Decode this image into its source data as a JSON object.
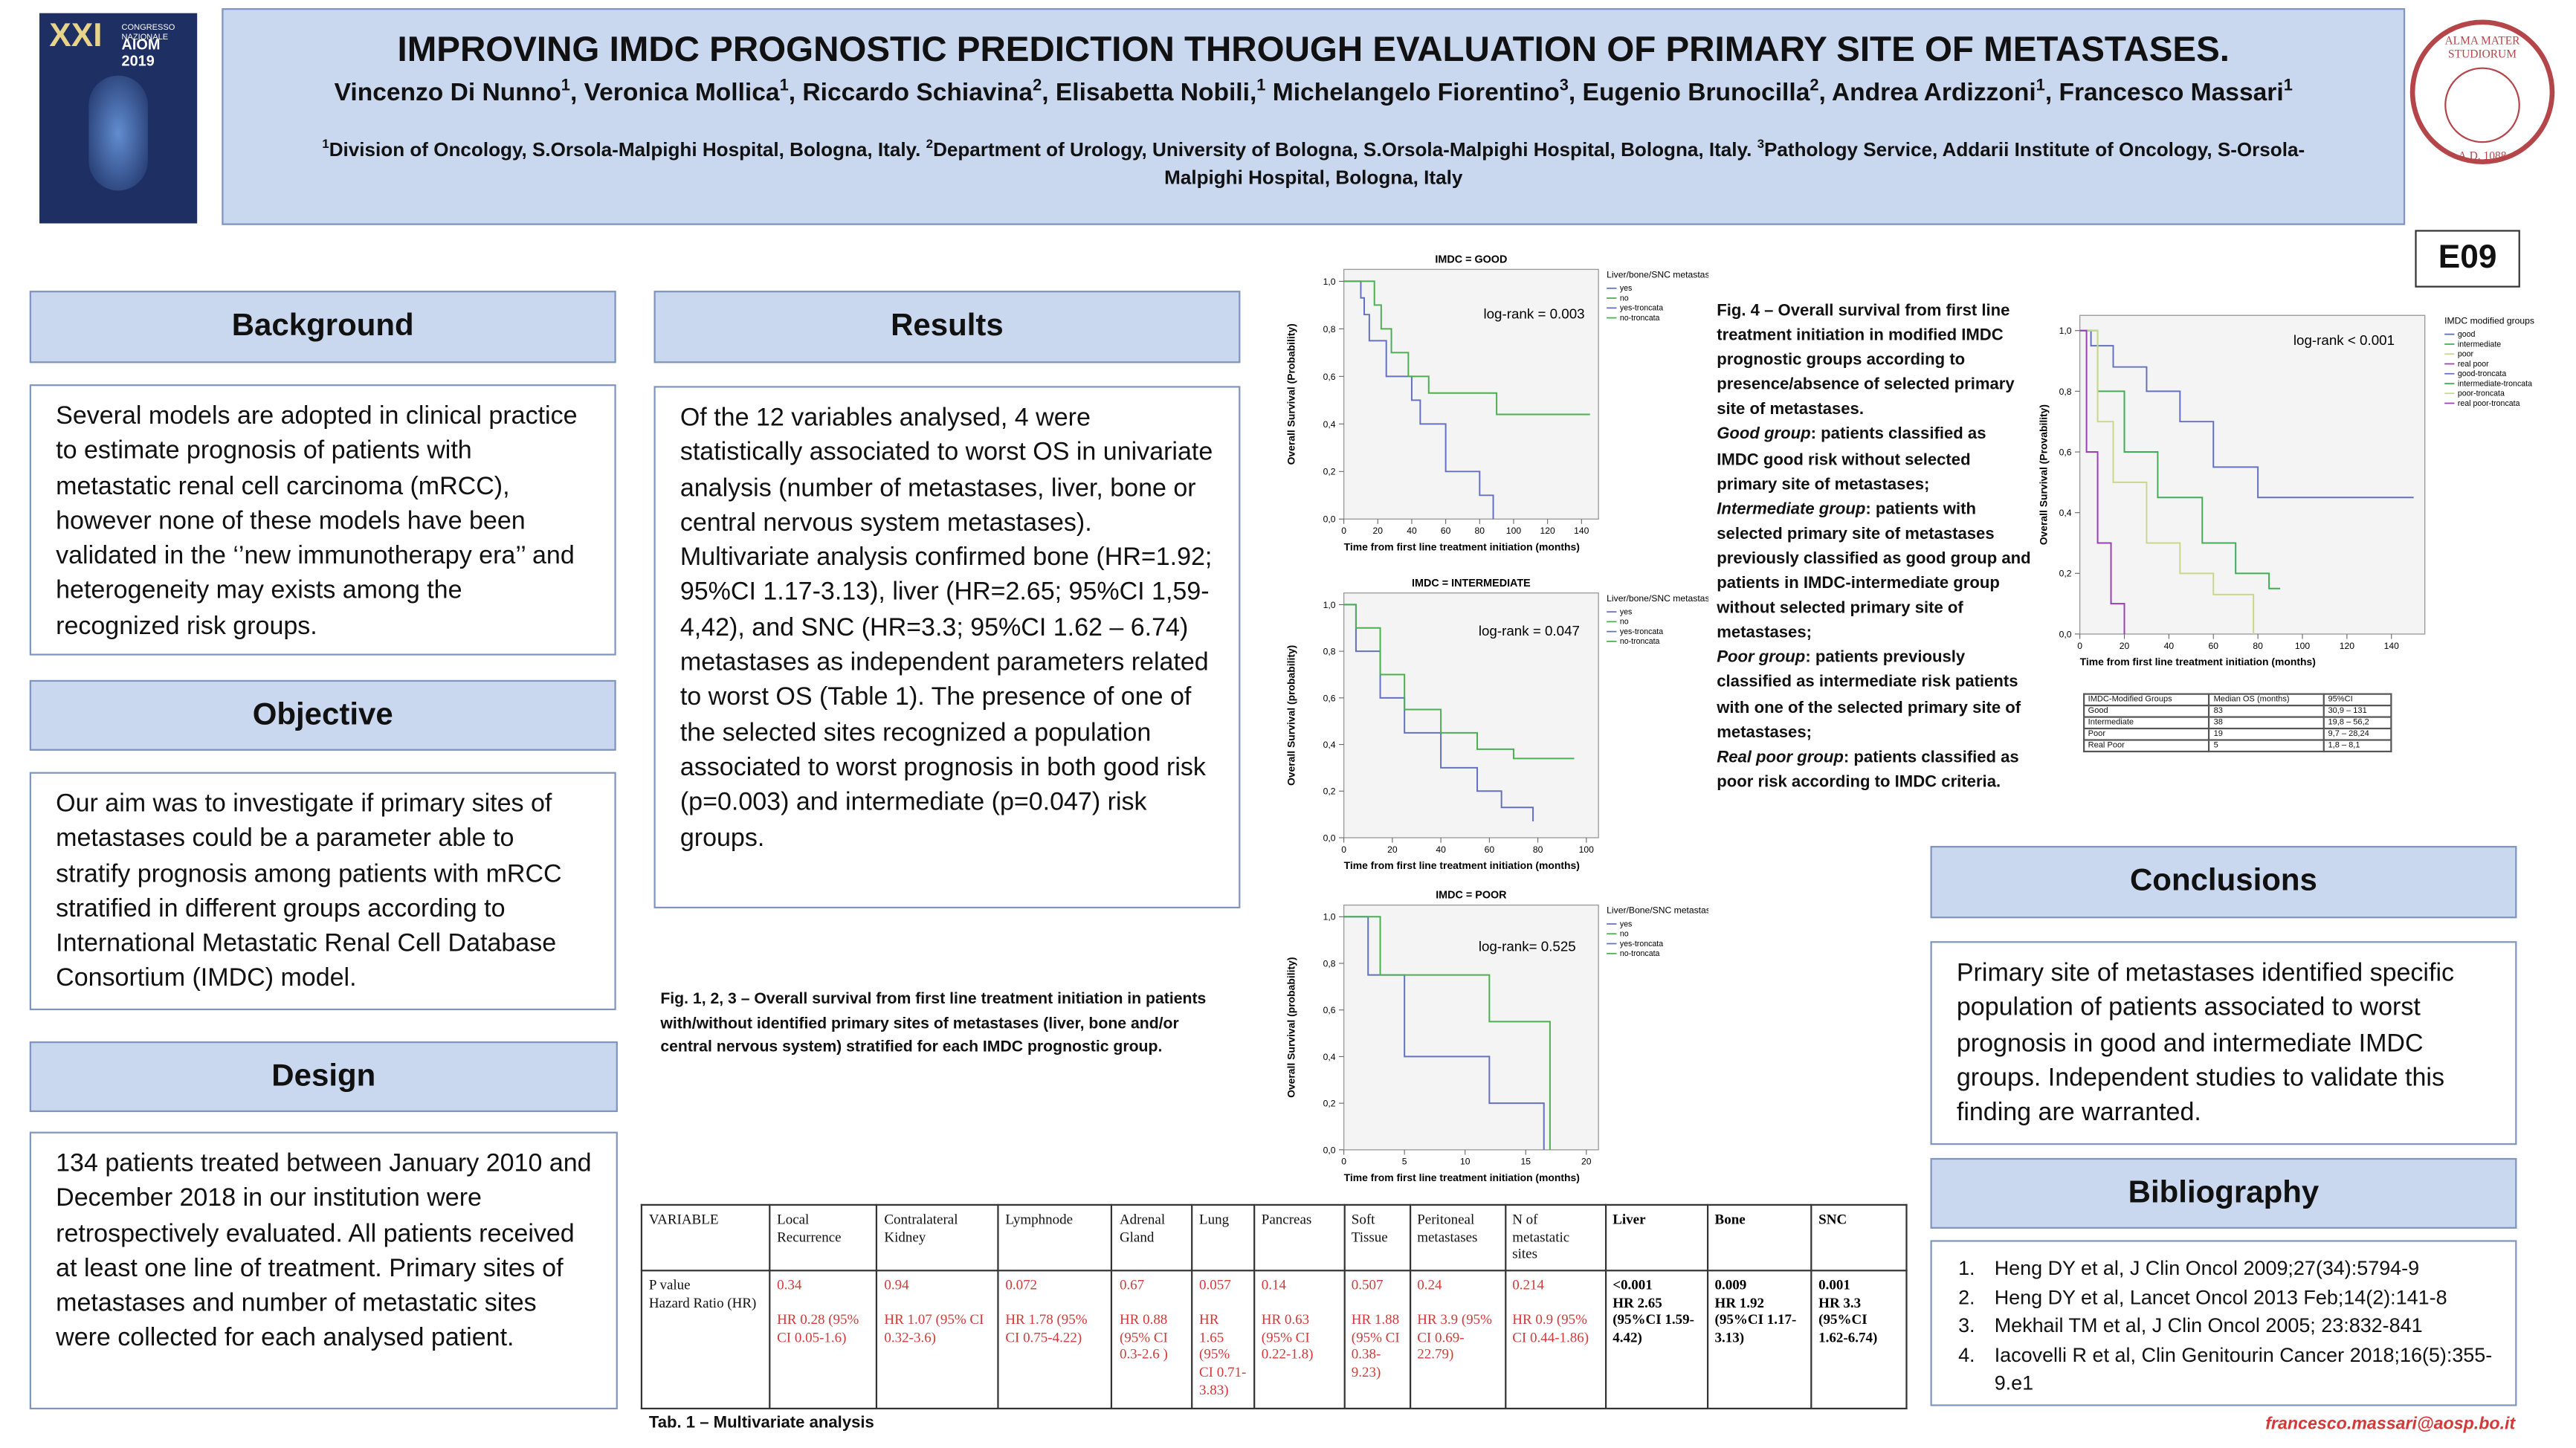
{
  "header": {
    "title": "IMPROVING IMDC PROGNOSTIC PREDICTION THROUGH EVALUATION OF PRIMARY SITE OF METASTASES.",
    "authors": [
      {
        "text": "Vincenzo Di Nunno",
        "sup": "1"
      },
      {
        "text": ", Veronica Mollica",
        "sup": "1"
      },
      {
        "text": ", Riccardo Schiavina",
        "sup": "2"
      },
      {
        "text": ", Elisabetta Nobili,",
        "sup": "1"
      },
      {
        "text": " Michelangelo Fiorentino",
        "sup": "3"
      },
      {
        "text": ", Eugenio Brunocilla",
        "sup": "2"
      },
      {
        "text": ", Andrea Ardizzoni",
        "sup": "1"
      },
      {
        "text": ", Francesco Massari",
        "sup": "1"
      }
    ],
    "affiliations": [
      {
        "sup": "1",
        "text": "Division of Oncology, S.Orsola-Malpighi Hospital, Bologna, Italy. "
      },
      {
        "sup": "2",
        "text": "Department of Urology, University of Bologna, S.Orsola-Malpighi Hospital, Bologna, Italy. "
      },
      {
        "sup": "3",
        "text": "Pathology Service, Addarii Institute of Oncology, S-Orsola-Malpighi Hospital, Bologna, Italy"
      }
    ],
    "logo_left": {
      "edition": "XXI",
      "congress": "CONGRESSO NAZIONALE",
      "name": "AIOM 2019"
    },
    "logo_right": {
      "motto": "ALMA MATER STUDIORUM",
      "year": "A.D. 1088"
    },
    "code": "E09"
  },
  "sections": {
    "background": {
      "heading": "Background",
      "text": "Several models are adopted in clinical practice to estimate prognosis of patients with metastatic renal cell carcinoma (mRCC), however none of these models have been validated in the ‘’new immunotherapy era’’ and heterogeneity may exists among the recognized risk groups."
    },
    "objective": {
      "heading": "Objective",
      "text": "Our aim was to investigate if primary sites of metastases could be a parameter able to stratify prognosis among patients with mRCC stratified in different groups according to International Metastatic Renal Cell Database Consortium (IMDC) model."
    },
    "design": {
      "heading": "Design",
      "text": "134 patients treated between January 2010 and December 2018 in our institution were retrospectively evaluated. All patients received at least one line of treatment. Primary sites of metastases and number of metastatic sites were collected for each analysed patient."
    },
    "results": {
      "heading": "Results",
      "text": "Of the 12 variables analysed, 4 were statistically associated to worst OS in univariate analysis (number of metastases, liver, bone or central nervous system metastases). Multivariate analysis confirmed bone (HR=1.92; 95%CI 1.17-3.13), liver (HR=2.65; 95%CI 1,59-4,42), and SNC (HR=3.3; 95%CI 1.62 – 6.74) metastases as independent parameters related to worst OS (Table 1). The presence of one of the selected sites recognized a population associated to worst prognosis in both good risk (p=0.003) and intermediate (p=0.047) risk groups."
    },
    "conclusions": {
      "heading": "Conclusions",
      "text": "Primary site of metastases identified specific population of patients associated to worst prognosis in good and intermediate IMDC groups. Independent studies to validate this finding are warranted."
    },
    "bibliography": {
      "heading": "Bibliography",
      "items": [
        {
          "num": "1.",
          "text": "Heng DY et al, J Clin Oncol 2009;27(34):5794-9"
        },
        {
          "num": "2.",
          "text": "Heng DY et al, Lancet Oncol 2013 Feb;14(2):141-8"
        },
        {
          "num": "3.",
          "text": "Mekhail TM et al, J Clin Oncol 2005; 23:832-841"
        },
        {
          "num": "4.",
          "text": "Iacovelli R et al, Clin Genitourin Cancer 2018;16(5):355-9.e1"
        }
      ]
    }
  },
  "fig123_caption": "Fig. 1, 2, 3 – Overall survival from first line treatment initiation in patients with/without identified primary sites of metastases (liver, bone and/or central nervous system) stratified for each IMDC prognostic group.",
  "fig4_caption": {
    "title": "Fig. 4 – Overall survival from first line treatment initiation in modified IMDC prognostic groups according to presence/absence of selected primary site of metastases.",
    "groups": [
      {
        "label": "Good group",
        "text": ": patients classified as IMDC good risk without selected primary site of metastases;"
      },
      {
        "label": "Intermediate group",
        "text": ": patients with selected primary site of metastases previously classified as good group and patients in IMDC-intermediate group without selected primary site of metastases;"
      },
      {
        "label": "Poor group",
        "text": ": patients previously classified as intermediate risk patients with one of the selected primary site of metastases;"
      },
      {
        "label": "Real poor group",
        "text": ": patients classified as poor risk according to IMDC criteria."
      }
    ]
  },
  "figures": [
    {
      "title": "IMDC = GOOD",
      "xlabel": "Time from first line treatment initiation (months)",
      "ylabel": "Overall Survival (Probability)",
      "xlim": [
        0,
        150
      ],
      "xticks": [
        0,
        20,
        40,
        60,
        80,
        100,
        120,
        140
      ],
      "ylim": [
        0,
        1.05
      ],
      "yticks": [
        {
          "value": 0,
          "label": "0,0"
        },
        {
          "value": 0.2,
          "label": "0,2"
        },
        {
          "value": 0.4,
          "label": "0,4"
        },
        {
          "value": 0.6,
          "label": "0,6"
        },
        {
          "value": 0.8,
          "label": "0,8"
        },
        {
          "value": 1,
          "label": "1,0"
        }
      ],
      "annotation": "log-rank = 0.003",
      "legend_title": "Liver/bone/SNC metastases",
      "legend": [
        "yes",
        "no",
        "yes-troncata",
        "no-troncata"
      ],
      "curves": [
        {
          "color": "#6470c0",
          "x": [
            0,
            10,
            12,
            15,
            25,
            40,
            45,
            60,
            80,
            88
          ],
          "y": [
            1,
            0.93,
            0.86,
            0.75,
            0.6,
            0.5,
            0.4,
            0.2,
            0.1,
            0
          ]
        },
        {
          "color": "#4caf50",
          "x": [
            0,
            18,
            22,
            28,
            38,
            50,
            60,
            90,
            145
          ],
          "y": [
            1,
            0.9,
            0.8,
            0.7,
            0.6,
            0.53,
            0.53,
            0.44,
            0.44
          ]
        }
      ]
    },
    {
      "title": "IMDC = INTERMEDIATE",
      "xlabel": "Time from first line treatment initiation (months)",
      "ylabel": "Overall Survival (probability)",
      "xlim": [
        0,
        105
      ],
      "xticks": [
        0,
        20,
        40,
        60,
        80,
        100
      ],
      "ylim": [
        0,
        1.05
      ],
      "yticks": [
        {
          "value": 0,
          "label": "0,0"
        },
        {
          "value": 0.2,
          "label": "0,2"
        },
        {
          "value": 0.4,
          "label": "0,4"
        },
        {
          "value": 0.6,
          "label": "0,6"
        },
        {
          "value": 0.8,
          "label": "0,8"
        },
        {
          "value": 1,
          "label": "1,0"
        }
      ],
      "annotation": "log-rank = 0.047",
      "legend_title": "Liver/bone/SNC metastases",
      "legend": [
        "yes",
        "no",
        "yes-troncata",
        "no-troncata"
      ],
      "curves": [
        {
          "color": "#6470c0",
          "x": [
            0,
            5,
            15,
            25,
            40,
            55,
            65,
            78
          ],
          "y": [
            1,
            0.8,
            0.6,
            0.45,
            0.3,
            0.2,
            0.13,
            0.07
          ]
        },
        {
          "color": "#4caf50",
          "x": [
            0,
            5,
            15,
            25,
            40,
            55,
            70,
            95
          ],
          "y": [
            1,
            0.9,
            0.7,
            0.55,
            0.45,
            0.38,
            0.34,
            0.34
          ]
        }
      ]
    },
    {
      "title": "IMDC = POOR",
      "xlabel": "Time from first line treatment initiation (months)",
      "ylabel": "Overall Survival (probability)",
      "xlim": [
        0,
        21
      ],
      "xticks": [
        0,
        5,
        10,
        15,
        20
      ],
      "ylim": [
        0,
        1.05
      ],
      "yticks": [
        {
          "value": 0,
          "label": "0,0"
        },
        {
          "value": 0.2,
          "label": "0,2"
        },
        {
          "value": 0.4,
          "label": "0,4"
        },
        {
          "value": 0.6,
          "label": "0,6"
        },
        {
          "value": 0.8,
          "label": "0,8"
        },
        {
          "value": 1,
          "label": "1,0"
        }
      ],
      "annotation": "log-rank= 0.525",
      "legend_title": "Liver/Bone/SNC metastases",
      "legend": [
        "yes",
        "no",
        "yes-troncata",
        "no-troncata"
      ],
      "curves": [
        {
          "color": "#6470c0",
          "x": [
            0,
            2,
            5,
            12,
            16.5
          ],
          "y": [
            1,
            0.75,
            0.4,
            0.2,
            0
          ]
        },
        {
          "color": "#4caf50",
          "x": [
            0,
            3,
            12,
            17
          ],
          "y": [
            1,
            0.75,
            0.55,
            0
          ]
        }
      ]
    },
    {
      "title": "",
      "xlabel": "Time from first line treatment initiation (months)",
      "ylabel": "Overall Survival (Provability)",
      "xlim": [
        0,
        155
      ],
      "xticks": [
        0,
        20,
        40,
        60,
        80,
        100,
        120,
        140
      ],
      "ylim": [
        0,
        1.05
      ],
      "yticks": [
        {
          "value": 0,
          "label": "0,0"
        },
        {
          "value": 0.2,
          "label": "0,2"
        },
        {
          "value": 0.4,
          "label": "0,4"
        },
        {
          "value": 0.6,
          "label": "0,6"
        },
        {
          "value": 0.8,
          "label": "0,8"
        },
        {
          "value": 1,
          "label": "1,0"
        }
      ],
      "annotation": "log-rank < 0.001",
      "legend_title": "IMDC modified groups",
      "legend": [
        "good",
        "intermediate",
        "poor",
        "real poor",
        "good-troncata",
        "intermediate-troncata",
        "poor-troncata",
        "real poor-troncata"
      ],
      "curves": [
        {
          "color": "#6470c0",
          "x": [
            0,
            5,
            15,
            30,
            45,
            60,
            80,
            150
          ],
          "y": [
            1,
            0.95,
            0.88,
            0.8,
            0.7,
            0.55,
            0.45,
            0.45
          ]
        },
        {
          "color": "#3fae55",
          "x": [
            0,
            8,
            20,
            35,
            55,
            70,
            85,
            90
          ],
          "y": [
            1,
            0.8,
            0.6,
            0.45,
            0.3,
            0.2,
            0.15,
            0.15
          ]
        },
        {
          "color": "#c8d88a",
          "x": [
            0,
            8,
            15,
            30,
            45,
            60,
            78
          ],
          "y": [
            1,
            0.7,
            0.5,
            0.3,
            0.2,
            0.13,
            0
          ]
        },
        {
          "color": "#9b3fb5",
          "x": [
            0,
            3,
            8,
            14,
            20
          ],
          "y": [
            1,
            0.6,
            0.3,
            0.1,
            0
          ]
        }
      ]
    }
  ],
  "fig4_table": {
    "columns": [
      "IMDC-Modified Groups",
      "Median OS (months)",
      "95%CI"
    ],
    "rows": [
      [
        "Good",
        "83",
        "30,9 – 131"
      ],
      [
        "Intermediate",
        "38",
        "19,8 – 56,2"
      ],
      [
        "Poor",
        "19",
        "9,7 – 28,24"
      ],
      [
        "Real Poor",
        "5",
        "1,8 – 8,1"
      ]
    ]
  },
  "table1": {
    "columns": [
      "VARIABLE",
      "Local Recurrence",
      "Contralateral Kidney",
      "Lymphnode",
      "Adrenal Gland",
      "Lung",
      "Pancreas",
      "Soft Tissue",
      "Peritoneal metastases",
      "N of metastatic sites",
      "Liver",
      "Bone",
      "SNC"
    ],
    "row_label": {
      "p": "P value",
      "hr": "Hazard Ratio (HR)"
    },
    "cells": [
      {
        "p": "0.34",
        "hr": "HR 0.28 (95% CI 0.05-1.6)"
      },
      {
        "p": "0.94",
        "hr": "HR 1.07 (95% CI 0.32-3.6)"
      },
      {
        "p": "0.072",
        "hr": "HR 1.78 (95% CI 0.75-4.22)"
      },
      {
        "p": "0.67",
        "hr": "HR 0.88 (95% CI 0.3-2.6 )"
      },
      {
        "p": "0.057",
        "hr": "HR 1.65 (95% CI 0.71-3.83)"
      },
      {
        "p": "0.14",
        "hr": "HR 0.63 (95% CI 0.22-1.8)"
      },
      {
        "p": "0.507",
        "hr": "HR 1.88 (95% CI 0.38-9.23)"
      },
      {
        "p": "0.24",
        "hr": "HR 3.9 (95% CI 0.69-22.79)"
      },
      {
        "p": "0.214",
        "hr": "HR 0.9 (95% CI 0.44-1.86)"
      },
      {
        "p": "<0.001",
        "hr": "HR 2.65 (95%CI 1.59-4.42)"
      },
      {
        "p": "0.009",
        "hr": "HR 1.92 (95%CI 1.17-3.13)"
      },
      {
        "p": "0.001",
        "hr": "HR 3.3 (95%CI 1.62-6.74)"
      }
    ],
    "caption": "Tab. 1 – Multivariate analysis"
  },
  "email": "francesco.massari@aosp.bo.it"
}
